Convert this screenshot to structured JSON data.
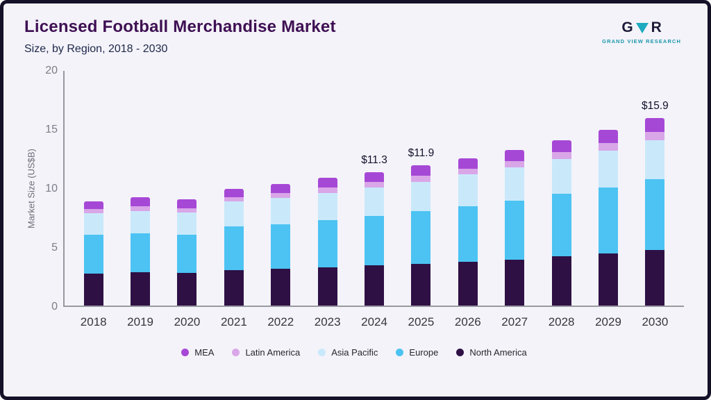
{
  "header": {
    "title": "Licensed Football Merchandise Market",
    "subtitle": "Size, by Region, 2018 - 2030",
    "logo_text": "GRAND VIEW RESEARCH",
    "logo_letters": {
      "g": "G",
      "r": "R"
    }
  },
  "chart_data": {
    "type": "bar",
    "stacked": true,
    "title": "Licensed Football Merchandise Market Size, by Region, 2018 - 2030",
    "xlabel": "",
    "ylabel": "Market Size (US$B)",
    "ylim": [
      0,
      20
    ],
    "yticks": [
      0,
      5,
      10,
      15,
      20
    ],
    "grid": false,
    "legend_position": "bottom",
    "categories": [
      "2018",
      "2019",
      "2020",
      "2021",
      "2022",
      "2023",
      "2024",
      "2025",
      "2026",
      "2027",
      "2028",
      "2029",
      "2030"
    ],
    "series": [
      {
        "name": "North America",
        "color": "#2e1045",
        "values": [
          2.7,
          2.8,
          2.75,
          3.0,
          3.1,
          3.25,
          3.4,
          3.55,
          3.7,
          3.9,
          4.15,
          4.4,
          4.7
        ]
      },
      {
        "name": "Europe",
        "color": "#4cc3f2",
        "values": [
          3.3,
          3.3,
          3.25,
          3.7,
          3.8,
          4.0,
          4.2,
          4.45,
          4.7,
          5.0,
          5.35,
          5.6,
          6.0
        ]
      },
      {
        "name": "Asia Pacific",
        "color": "#c9e9fb",
        "values": [
          1.8,
          1.9,
          1.9,
          2.1,
          2.2,
          2.3,
          2.4,
          2.5,
          2.7,
          2.8,
          2.9,
          3.1,
          3.3
        ]
      },
      {
        "name": "Latin America",
        "color": "#d9a6e8",
        "values": [
          0.35,
          0.4,
          0.35,
          0.4,
          0.45,
          0.45,
          0.5,
          0.5,
          0.5,
          0.55,
          0.6,
          0.65,
          0.7
        ]
      },
      {
        "name": "MEA",
        "color": "#a648d6",
        "values": [
          0.65,
          0.8,
          0.75,
          0.7,
          0.75,
          0.8,
          0.8,
          0.9,
          0.9,
          0.95,
          1.0,
          1.15,
          1.2
        ]
      }
    ],
    "totals": [
      8.8,
      9.2,
      9.0,
      9.9,
      10.3,
      10.8,
      11.3,
      11.9,
      12.5,
      13.2,
      14.0,
      14.9,
      15.9
    ],
    "annotations": [
      {
        "category": "2024",
        "label": "$11.3"
      },
      {
        "category": "2025",
        "label": "$11.9"
      },
      {
        "category": "2030",
        "label": "$15.9"
      }
    ],
    "legend": [
      "MEA",
      "Latin America",
      "Asia Pacific",
      "Europe",
      "North America"
    ]
  }
}
